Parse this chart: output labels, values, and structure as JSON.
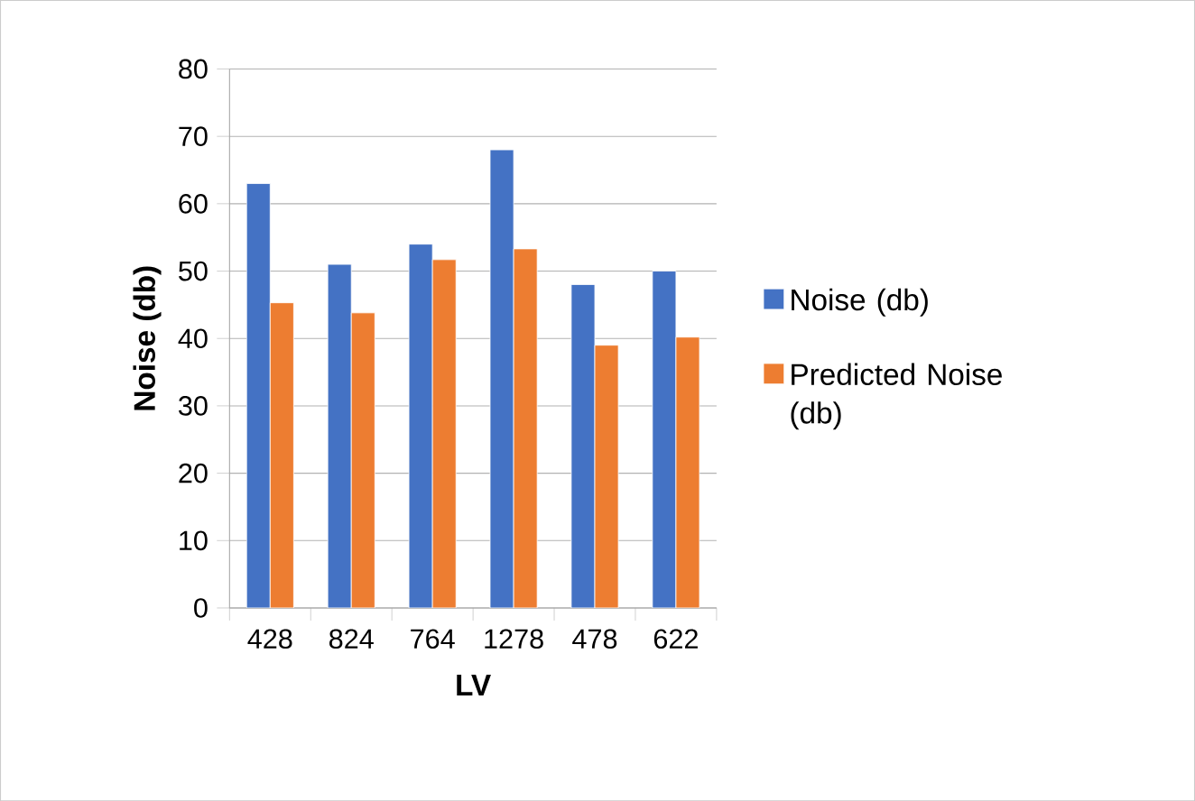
{
  "chart_data": {
    "type": "bar",
    "xlabel": "LV",
    "ylabel": "Noise (db)",
    "categories": [
      "428",
      "824",
      "764",
      "1278",
      "478",
      "622"
    ],
    "series": [
      {
        "name": "Noise (db)",
        "color": "#4472c4",
        "values": [
          63,
          51,
          54,
          68,
          48,
          50
        ]
      },
      {
        "name": "Predicted Noise (db)",
        "color": "#ed7d31",
        "values": [
          45.3,
          43.8,
          51.7,
          53.3,
          39.0,
          40.2
        ]
      }
    ],
    "ylim": [
      0,
      80
    ],
    "yticks": [
      0,
      10,
      20,
      30,
      40,
      50,
      60,
      70,
      80
    ],
    "grid": "y",
    "legend": "right"
  }
}
